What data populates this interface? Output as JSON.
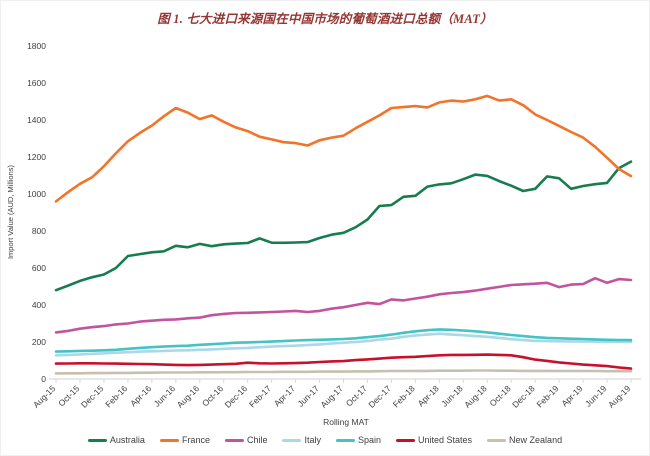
{
  "title": "图 1. 七大进口来源国在中国市场的葡萄酒进口总额（MAT）",
  "colors": {
    "title_text": "#953735",
    "axis_text": "#404040",
    "axis_line": "#d9d9d9",
    "background": "#ffffff"
  },
  "chart_data": {
    "type": "line",
    "title": "图 1. 七大进口来源国在中国市场的葡萄酒进口总额（MAT）",
    "xlabel": "Rolling MAT",
    "ylabel": "Import Value (AUD, Millions)",
    "ylim": [
      0,
      1800
    ],
    "y_ticks": [
      0,
      200,
      400,
      600,
      800,
      1000,
      1200,
      1400,
      1600,
      1800
    ],
    "grid": false,
    "legend_position": "bottom",
    "x_tick_every": 2,
    "x": [
      "Aug-15",
      "Sep-15",
      "Oct-15",
      "Nov-15",
      "Dec-15",
      "Jan-16",
      "Feb-16",
      "Mar-16",
      "Apr-16",
      "May-16",
      "Jun-16",
      "Jul-16",
      "Aug-16",
      "Sep-16",
      "Oct-16",
      "Nov-16",
      "Dec-16",
      "Jan-17",
      "Feb-17",
      "Mar-17",
      "Apr-17",
      "May-17",
      "Jun-17",
      "Jul-17",
      "Aug-17",
      "Sep-17",
      "Oct-17",
      "Nov-17",
      "Dec-17",
      "Jan-18",
      "Feb-18",
      "Mar-18",
      "Apr-18",
      "May-18",
      "Jun-18",
      "Jul-18",
      "Aug-18",
      "Sep-18",
      "Oct-18",
      "Nov-18",
      "Dec-18",
      "Jan-19",
      "Feb-19",
      "Mar-19",
      "Apr-19",
      "May-19",
      "Jun-19",
      "Jul-19",
      "Aug-19"
    ],
    "series": [
      {
        "name": "Australia",
        "color": "#177d4e",
        "values": [
          480,
          505,
          530,
          550,
          565,
          600,
          665,
          675,
          685,
          690,
          720,
          712,
          730,
          718,
          728,
          732,
          735,
          760,
          737,
          736,
          738,
          740,
          762,
          780,
          790,
          820,
          862,
          935,
          940,
          985,
          990,
          1040,
          1052,
          1058,
          1080,
          1105,
          1098,
          1070,
          1045,
          1016,
          1028,
          1095,
          1085,
          1028,
          1043,
          1053,
          1060,
          1140,
          1175
        ]
      },
      {
        "name": "France",
        "color": "#f2732a",
        "values": [
          960,
          1010,
          1055,
          1090,
          1150,
          1220,
          1285,
          1330,
          1370,
          1420,
          1465,
          1440,
          1405,
          1425,
          1390,
          1360,
          1340,
          1310,
          1295,
          1280,
          1275,
          1262,
          1290,
          1305,
          1315,
          1355,
          1390,
          1425,
          1465,
          1470,
          1475,
          1468,
          1495,
          1505,
          1500,
          1512,
          1530,
          1505,
          1512,
          1480,
          1430,
          1400,
          1368,
          1335,
          1305,
          1255,
          1196,
          1135,
          1097
        ]
      },
      {
        "name": "Chile",
        "color": "#c2549e",
        "values": [
          252,
          260,
          272,
          280,
          286,
          295,
          300,
          310,
          315,
          320,
          322,
          328,
          332,
          345,
          352,
          357,
          358,
          360,
          362,
          365,
          368,
          362,
          368,
          380,
          388,
          400,
          412,
          405,
          430,
          425,
          435,
          445,
          458,
          465,
          470,
          478,
          488,
          498,
          508,
          512,
          515,
          520,
          497,
          510,
          513,
          545,
          520,
          540,
          535
        ]
      },
      {
        "name": "Italy",
        "color": "#a9d8e8",
        "values": [
          128,
          130,
          133,
          136,
          139,
          142,
          145,
          148,
          150,
          152,
          154,
          155,
          158,
          160,
          163,
          166,
          168,
          172,
          175,
          178,
          180,
          183,
          187,
          192,
          196,
          200,
          205,
          213,
          218,
          228,
          235,
          240,
          245,
          240,
          237,
          232,
          228,
          222,
          215,
          210,
          206,
          205,
          204,
          203,
          202,
          202,
          201,
          201,
          200
        ]
      },
      {
        "name": "Spain",
        "color": "#45c2c4",
        "values": [
          148,
          150,
          152,
          153,
          155,
          158,
          163,
          168,
          172,
          175,
          178,
          180,
          185,
          188,
          192,
          196,
          198,
          200,
          202,
          205,
          208,
          210,
          212,
          214,
          216,
          220,
          226,
          232,
          240,
          250,
          258,
          264,
          268,
          266,
          262,
          258,
          252,
          245,
          238,
          232,
          226,
          222,
          220,
          218,
          216,
          214,
          212,
          211,
          210
        ]
      },
      {
        "name": "United States",
        "color": "#c8102e",
        "values": [
          83,
          84,
          85,
          85,
          84,
          83,
          82,
          81,
          80,
          78,
          76,
          75,
          76,
          78,
          80,
          82,
          88,
          85,
          84,
          85,
          86,
          88,
          92,
          95,
          97,
          102,
          106,
          110,
          115,
          118,
          120,
          124,
          128,
          130,
          130,
          131,
          132,
          130,
          128,
          118,
          105,
          98,
          90,
          84,
          78,
          74,
          70,
          62,
          56
        ]
      },
      {
        "name": "New Zealand",
        "color": "#c8c0ae",
        "values": [
          30,
          31,
          31,
          32,
          32,
          33,
          33,
          34,
          34,
          35,
          35,
          35,
          36,
          36,
          37,
          37,
          38,
          38,
          38,
          39,
          39,
          39,
          40,
          40,
          40,
          41,
          41,
          42,
          43,
          43,
          44,
          44,
          45,
          45,
          45,
          46,
          46,
          45,
          45,
          44,
          44,
          44,
          43,
          43,
          43,
          43,
          42,
          42,
          42
        ]
      }
    ]
  }
}
